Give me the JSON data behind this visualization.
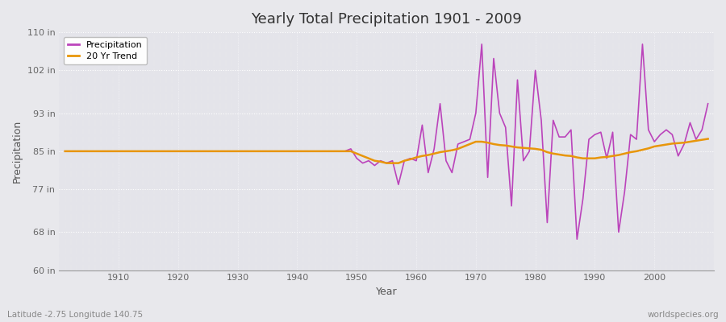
{
  "title": "Yearly Total Precipitation 1901 - 2009",
  "xlabel": "Year",
  "ylabel": "Precipitation",
  "footnote_left": "Latitude -2.75 Longitude 140.75",
  "footnote_right": "worldspecies.org",
  "legend_entries": [
    "Precipitation",
    "20 Yr Trend"
  ],
  "precip_color": "#bb44bb",
  "trend_color": "#e8960a",
  "bg_color": "#e8e8ec",
  "plot_bg_color": "#e4e4ea",
  "ylim": [
    60,
    110
  ],
  "xlim": [
    1901,
    2009
  ],
  "ytick_labels": [
    "60 in",
    "68 in",
    "77 in",
    "85 in",
    "93 in",
    "102 in",
    "110 in"
  ],
  "ytick_values": [
    60,
    68,
    77,
    85,
    93,
    102,
    110
  ],
  "xtick_values": [
    1910,
    1920,
    1930,
    1940,
    1950,
    1960,
    1970,
    1980,
    1990,
    2000
  ],
  "years": [
    1901,
    1902,
    1903,
    1904,
    1905,
    1906,
    1907,
    1908,
    1909,
    1910,
    1911,
    1912,
    1913,
    1914,
    1915,
    1916,
    1917,
    1918,
    1919,
    1920,
    1921,
    1922,
    1923,
    1924,
    1925,
    1926,
    1927,
    1928,
    1929,
    1930,
    1931,
    1932,
    1933,
    1934,
    1935,
    1936,
    1937,
    1938,
    1939,
    1940,
    1941,
    1942,
    1943,
    1944,
    1945,
    1946,
    1947,
    1948,
    1949,
    1950,
    1951,
    1952,
    1953,
    1954,
    1955,
    1956,
    1957,
    1958,
    1959,
    1960,
    1961,
    1962,
    1963,
    1964,
    1965,
    1966,
    1967,
    1968,
    1969,
    1970,
    1971,
    1972,
    1973,
    1974,
    1975,
    1976,
    1977,
    1978,
    1979,
    1980,
    1981,
    1982,
    1983,
    1984,
    1985,
    1986,
    1987,
    1988,
    1989,
    1990,
    1991,
    1992,
    1993,
    1994,
    1995,
    1996,
    1997,
    1998,
    1999,
    2000,
    2001,
    2002,
    2003,
    2004,
    2005,
    2006,
    2007,
    2008,
    2009
  ],
  "precipitation": [
    85.0,
    85.0,
    85.0,
    85.0,
    85.0,
    85.0,
    85.0,
    85.0,
    85.0,
    85.0,
    85.0,
    85.0,
    85.0,
    85.0,
    85.0,
    85.0,
    85.0,
    85.0,
    85.0,
    85.0,
    85.0,
    85.0,
    85.0,
    85.0,
    85.0,
    85.0,
    85.0,
    85.0,
    85.0,
    85.0,
    85.0,
    85.0,
    85.0,
    85.0,
    85.0,
    85.0,
    85.0,
    85.0,
    85.0,
    85.0,
    85.0,
    85.0,
    85.0,
    85.0,
    85.0,
    85.0,
    85.0,
    85.0,
    85.5,
    83.5,
    82.5,
    83.0,
    82.0,
    83.0,
    82.5,
    83.0,
    78.0,
    83.0,
    83.5,
    83.0,
    90.5,
    80.5,
    85.5,
    95.0,
    83.0,
    80.5,
    86.5,
    87.0,
    87.5,
    93.0,
    107.5,
    79.5,
    104.5,
    93.0,
    90.0,
    73.5,
    100.0,
    83.0,
    85.0,
    102.0,
    91.5,
    70.0,
    91.5,
    88.0,
    88.0,
    89.5,
    66.5,
    75.0,
    87.5,
    88.5,
    89.0,
    83.5,
    89.0,
    68.0,
    76.5,
    88.5,
    87.5,
    107.5,
    89.5,
    87.0,
    88.5,
    89.5,
    88.5,
    84.0,
    86.5,
    91.0,
    87.5,
    89.5,
    95.0
  ],
  "trend": [
    85.0,
    85.0,
    85.0,
    85.0,
    85.0,
    85.0,
    85.0,
    85.0,
    85.0,
    85.0,
    85.0,
    85.0,
    85.0,
    85.0,
    85.0,
    85.0,
    85.0,
    85.0,
    85.0,
    85.0,
    85.0,
    85.0,
    85.0,
    85.0,
    85.0,
    85.0,
    85.0,
    85.0,
    85.0,
    85.0,
    85.0,
    85.0,
    85.0,
    85.0,
    85.0,
    85.0,
    85.0,
    85.0,
    85.0,
    85.0,
    85.0,
    85.0,
    85.0,
    85.0,
    85.0,
    85.0,
    85.0,
    85.0,
    85.0,
    84.5,
    84.0,
    83.5,
    83.0,
    82.8,
    82.5,
    82.5,
    82.5,
    83.0,
    83.3,
    83.7,
    84.0,
    84.2,
    84.5,
    84.8,
    85.0,
    85.2,
    85.5,
    86.0,
    86.5,
    87.0,
    87.0,
    86.8,
    86.5,
    86.3,
    86.2,
    86.0,
    85.8,
    85.7,
    85.6,
    85.5,
    85.3,
    84.8,
    84.5,
    84.3,
    84.1,
    84.0,
    83.7,
    83.5,
    83.5,
    83.5,
    83.7,
    83.8,
    84.0,
    84.2,
    84.5,
    84.8,
    85.0,
    85.3,
    85.6,
    86.0,
    86.2,
    86.4,
    86.6,
    86.7,
    86.8,
    87.0,
    87.2,
    87.4,
    87.6
  ]
}
